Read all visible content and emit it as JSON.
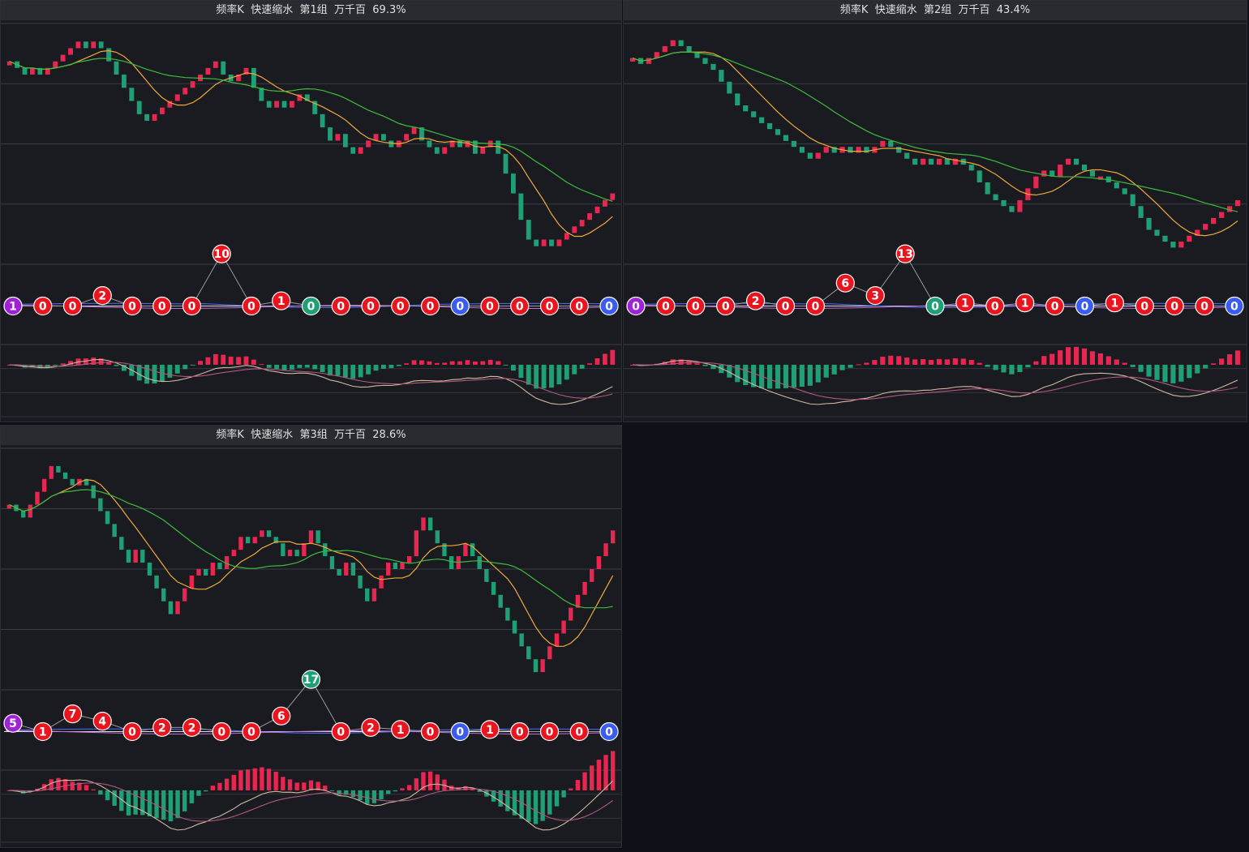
{
  "panels": [
    {
      "title": "频率K  快速缩水  第1组  万千百  69.3%"
    },
    {
      "title": "频率K  快速缩水  第2组  万千百  43.4%"
    },
    {
      "title": "频率K  快速缩水  第3组  万千百  28.6%"
    }
  ],
  "colors": {
    "up": "#e8264f",
    "down": "#1f9f76",
    "ma_short": "#f0a83a",
    "ma_long": "#3dbb3d",
    "blue_line": "#4b6fff",
    "purple_line": "#c06bd4",
    "macd_dif": "#d0b8a0",
    "macd_dea": "#b05880",
    "badge_red": "#e8141e",
    "badge_purple": "#a022d6",
    "badge_blue": "#3a5cf0",
    "badge_green": "#1f9f76"
  },
  "chart_data": [
    {
      "type": "candlestick",
      "closes": [
        42,
        41,
        40,
        41,
        40,
        41,
        42,
        43,
        44,
        45,
        44,
        45,
        44,
        42,
        40,
        38,
        36,
        34,
        33,
        34,
        35,
        36,
        37,
        38,
        39,
        40,
        41,
        42,
        40,
        39,
        40,
        41,
        38,
        36,
        35,
        36,
        35,
        36,
        37,
        36,
        34,
        32,
        30,
        31,
        29,
        28,
        29,
        30,
        31,
        30,
        29,
        30,
        31,
        32,
        30,
        29,
        28,
        29,
        30,
        29,
        30,
        28,
        29,
        30,
        28,
        25,
        22,
        18,
        15,
        14,
        15,
        14,
        15,
        16,
        17,
        18,
        19,
        20,
        21,
        22
      ],
      "badges": [
        {
          "v": "1",
          "c": "purple",
          "lvl": 0
        },
        {
          "v": "0",
          "c": "red",
          "lvl": 0
        },
        {
          "v": "0",
          "c": "red",
          "lvl": 0
        },
        {
          "v": "2",
          "c": "red",
          "lvl": 1
        },
        {
          "v": "0",
          "c": "red",
          "lvl": 0
        },
        {
          "v": "0",
          "c": "red",
          "lvl": 0
        },
        {
          "v": "0",
          "c": "red",
          "lvl": 0
        },
        {
          "v": "10",
          "c": "red",
          "lvl": 5
        },
        {
          "v": "0",
          "c": "red",
          "lvl": 0
        },
        {
          "v": "1",
          "c": "red",
          "lvl": 0.5
        },
        {
          "v": "0",
          "c": "green",
          "lvl": 0
        },
        {
          "v": "0",
          "c": "red",
          "lvl": 0
        },
        {
          "v": "0",
          "c": "red",
          "lvl": 0
        },
        {
          "v": "0",
          "c": "red",
          "lvl": 0
        },
        {
          "v": "0",
          "c": "red",
          "lvl": 0
        },
        {
          "v": "0",
          "c": "blue",
          "lvl": 0
        },
        {
          "v": "0",
          "c": "red",
          "lvl": 0
        },
        {
          "v": "0",
          "c": "red",
          "lvl": 0
        },
        {
          "v": "0",
          "c": "red",
          "lvl": 0
        },
        {
          "v": "0",
          "c": "red",
          "lvl": 0
        },
        {
          "v": "0",
          "c": "blue",
          "lvl": 0
        }
      ]
    },
    {
      "type": "candlestick",
      "closes": [
        46,
        45,
        46,
        47,
        48,
        49,
        48,
        47,
        46,
        45,
        44,
        42,
        40,
        38,
        37,
        36,
        35,
        34,
        33,
        32,
        31,
        30,
        29,
        30,
        31,
        30,
        31,
        30,
        31,
        30,
        31,
        32,
        31,
        30,
        29,
        28,
        29,
        28,
        29,
        28,
        29,
        28,
        27,
        25,
        23,
        22,
        21,
        20,
        22,
        24,
        26,
        27,
        26,
        28,
        29,
        28,
        27,
        26,
        26,
        25,
        24,
        23,
        21,
        19,
        17,
        16,
        15,
        14,
        15,
        16,
        17,
        18,
        19,
        20,
        21,
        22
      ],
      "badges": [
        {
          "v": "0",
          "c": "purple",
          "lvl": 0
        },
        {
          "v": "0",
          "c": "red",
          "lvl": 0
        },
        {
          "v": "0",
          "c": "red",
          "lvl": 0
        },
        {
          "v": "0",
          "c": "red",
          "lvl": 0
        },
        {
          "v": "2",
          "c": "red",
          "lvl": 0.5
        },
        {
          "v": "0",
          "c": "red",
          "lvl": 0
        },
        {
          "v": "0",
          "c": "red",
          "lvl": 0
        },
        {
          "v": "6",
          "c": "red",
          "lvl": 2.2
        },
        {
          "v": "3",
          "c": "red",
          "lvl": 1
        },
        {
          "v": "13",
          "c": "red",
          "lvl": 5
        },
        {
          "v": "0",
          "c": "green",
          "lvl": 0
        },
        {
          "v": "1",
          "c": "red",
          "lvl": 0.3
        },
        {
          "v": "0",
          "c": "red",
          "lvl": 0
        },
        {
          "v": "1",
          "c": "red",
          "lvl": 0.3
        },
        {
          "v": "0",
          "c": "red",
          "lvl": 0
        },
        {
          "v": "0",
          "c": "blue",
          "lvl": 0
        },
        {
          "v": "1",
          "c": "red",
          "lvl": 0.3
        },
        {
          "v": "0",
          "c": "red",
          "lvl": 0
        },
        {
          "v": "0",
          "c": "red",
          "lvl": 0
        },
        {
          "v": "0",
          "c": "red",
          "lvl": 0
        },
        {
          "v": "0",
          "c": "blue",
          "lvl": 0
        }
      ]
    },
    {
      "type": "candlestick",
      "closes": [
        36,
        35,
        34,
        36,
        38,
        40,
        42,
        41,
        40,
        39,
        40,
        39,
        37,
        35,
        33,
        31,
        29,
        27,
        29,
        27,
        25,
        23,
        21,
        19,
        21,
        23,
        25,
        26,
        25,
        27,
        26,
        28,
        29,
        31,
        30,
        31,
        32,
        31,
        30,
        28,
        29,
        28,
        30,
        32,
        30,
        28,
        26,
        25,
        27,
        25,
        23,
        21,
        23,
        25,
        27,
        26,
        27,
        28,
        32,
        34,
        32,
        30,
        28,
        26,
        28,
        30,
        28,
        26,
        24,
        22,
        20,
        18,
        16,
        14,
        12,
        10,
        12,
        14,
        16,
        18,
        20,
        22,
        24,
        26,
        28,
        30,
        32
      ],
      "badges": [
        {
          "v": "5",
          "c": "purple",
          "lvl": 0.8
        },
        {
          "v": "1",
          "c": "red",
          "lvl": 0
        },
        {
          "v": "7",
          "c": "red",
          "lvl": 1.7
        },
        {
          "v": "4",
          "c": "red",
          "lvl": 1
        },
        {
          "v": "0",
          "c": "red",
          "lvl": 0
        },
        {
          "v": "2",
          "c": "red",
          "lvl": 0.4
        },
        {
          "v": "2",
          "c": "red",
          "lvl": 0.4
        },
        {
          "v": "0",
          "c": "red",
          "lvl": 0
        },
        {
          "v": "0",
          "c": "red",
          "lvl": 0
        },
        {
          "v": "6",
          "c": "red",
          "lvl": 1.5
        },
        {
          "v": "17",
          "c": "green",
          "lvl": 5
        },
        {
          "v": "0",
          "c": "red",
          "lvl": 0
        },
        {
          "v": "2",
          "c": "red",
          "lvl": 0.4
        },
        {
          "v": "1",
          "c": "red",
          "lvl": 0.2
        },
        {
          "v": "0",
          "c": "red",
          "lvl": 0
        },
        {
          "v": "0",
          "c": "blue",
          "lvl": 0
        },
        {
          "v": "1",
          "c": "red",
          "lvl": 0.2
        },
        {
          "v": "0",
          "c": "red",
          "lvl": 0
        },
        {
          "v": "0",
          "c": "red",
          "lvl": 0
        },
        {
          "v": "0",
          "c": "red",
          "lvl": 0
        },
        {
          "v": "0",
          "c": "blue",
          "lvl": 0
        }
      ]
    }
  ]
}
